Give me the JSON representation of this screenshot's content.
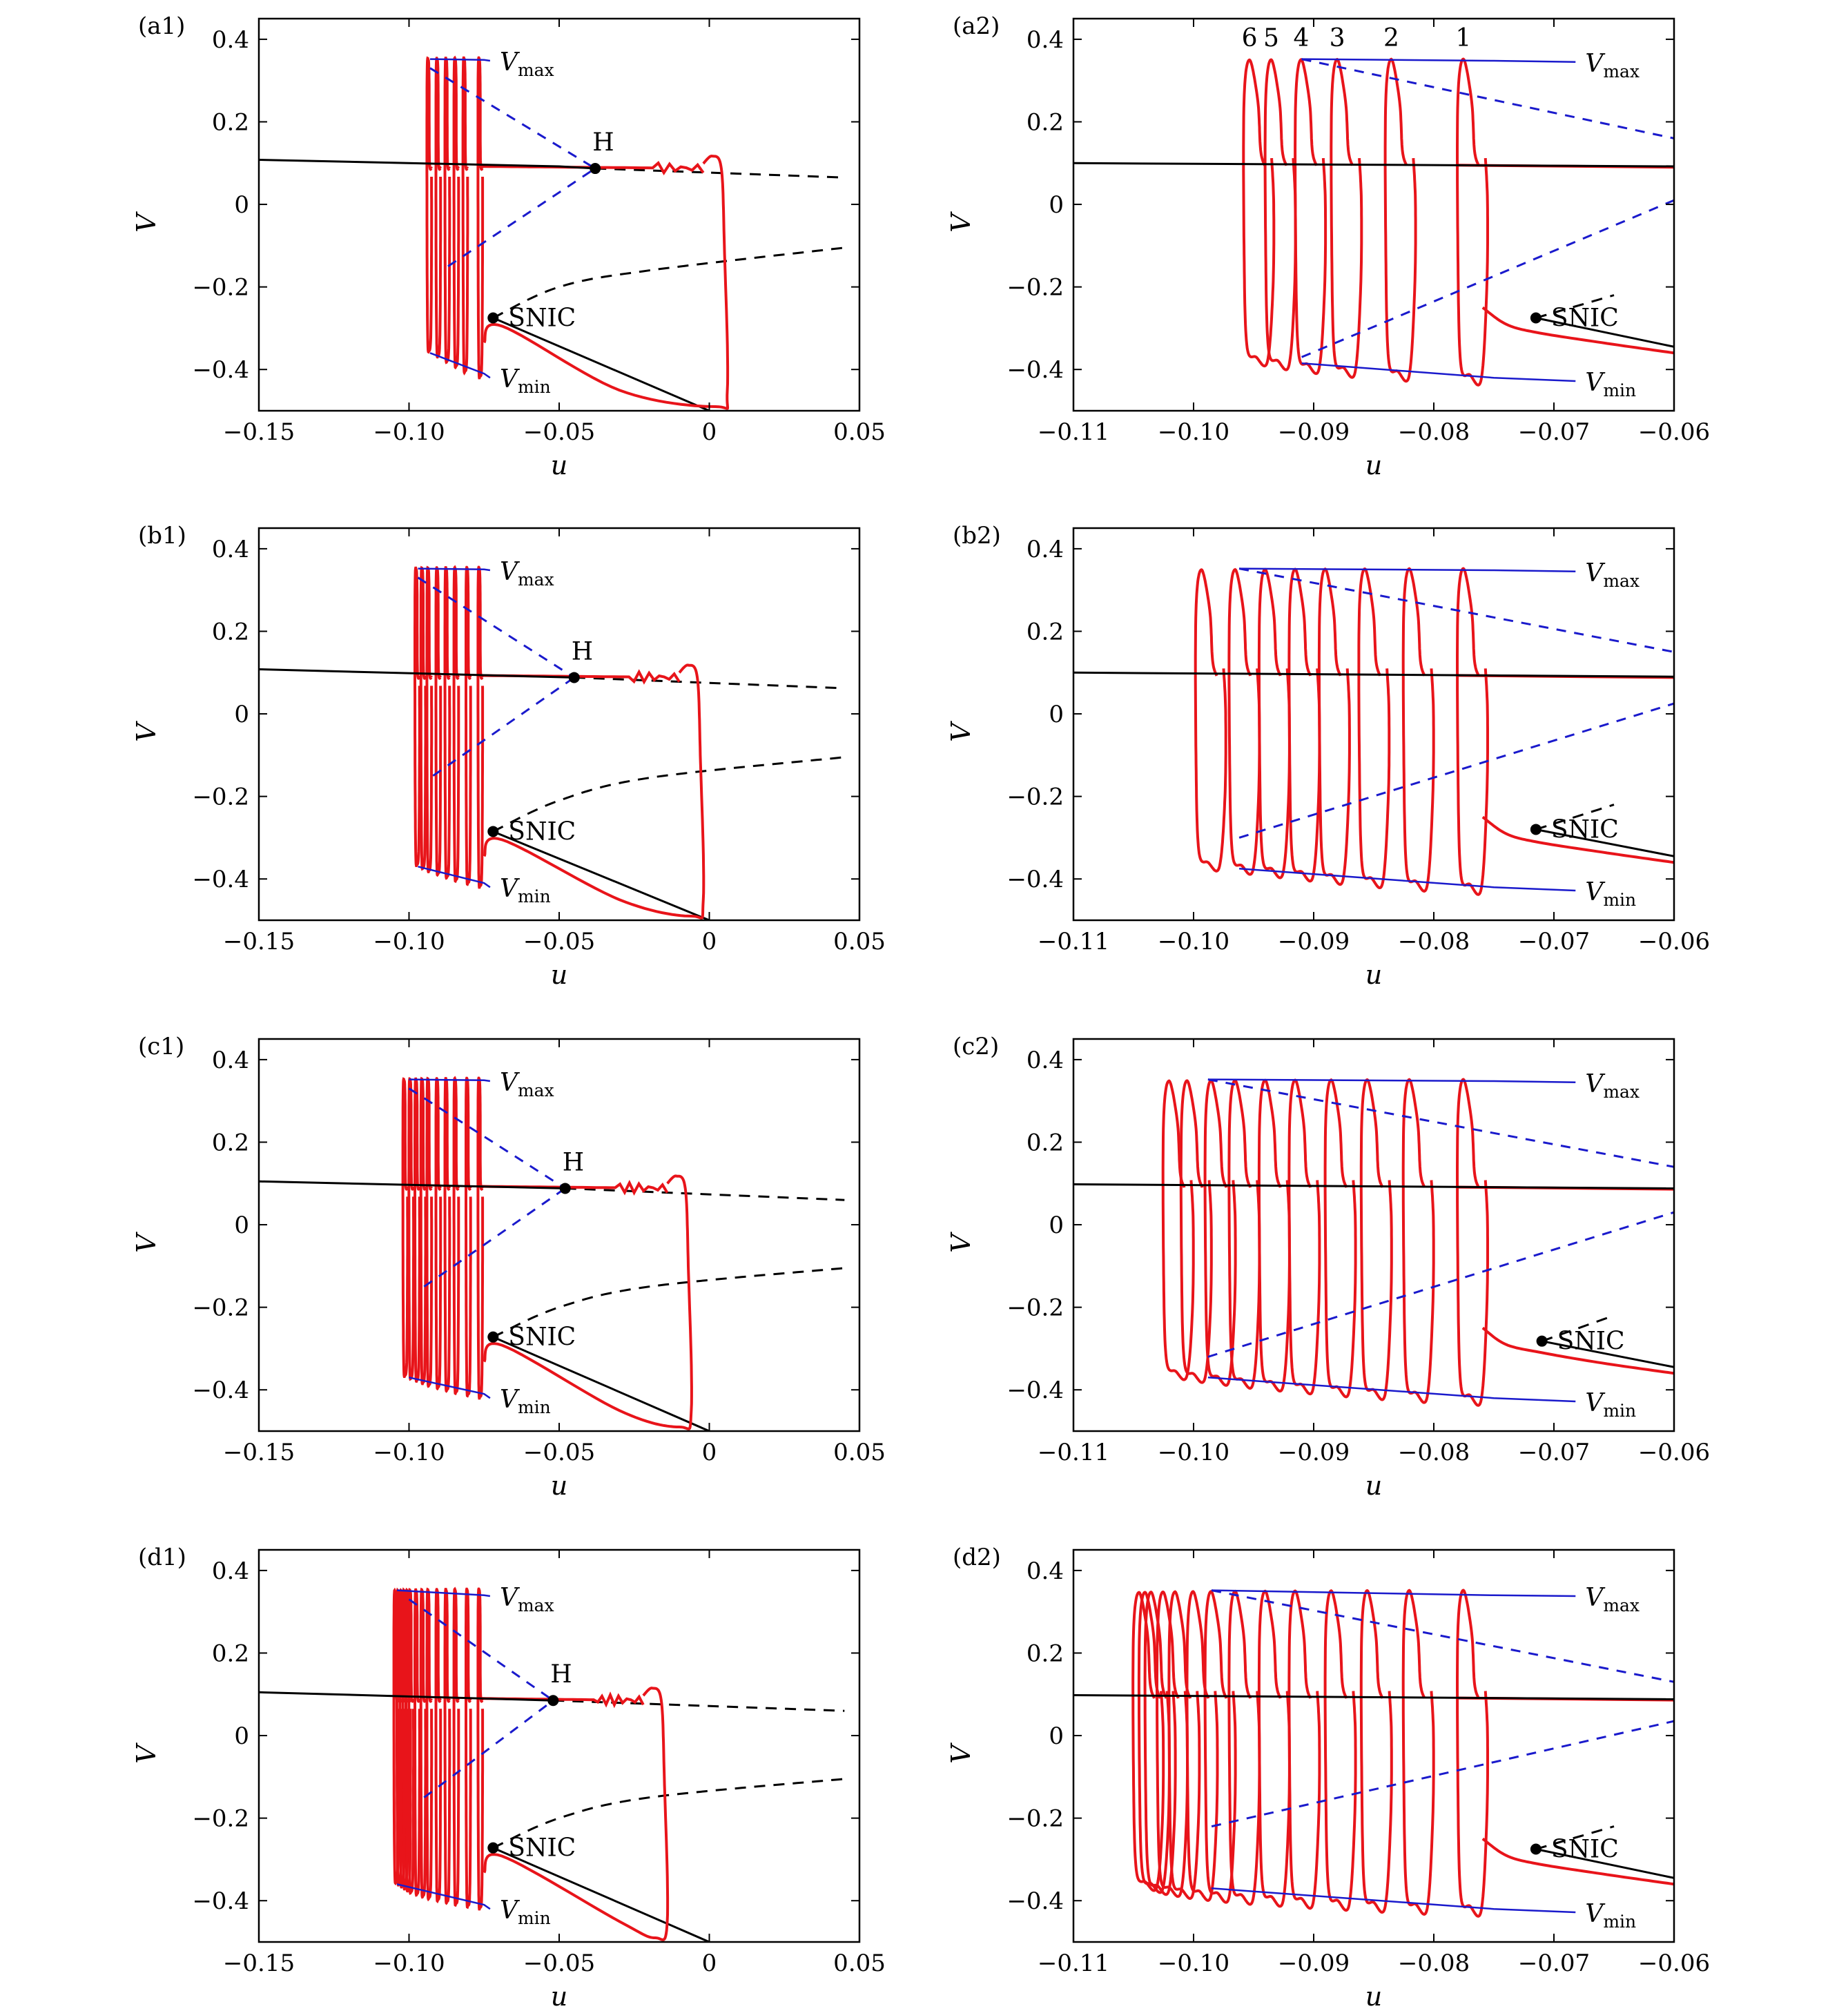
{
  "chart_data": [
    {
      "id": "a1",
      "type": "line",
      "panel_label": "(a1)",
      "xlabel": "u",
      "ylabel": "V",
      "xlim": [
        -0.15,
        0.05
      ],
      "ylim": [
        -0.5,
        0.45
      ],
      "xticks": [
        -0.15,
        -0.1,
        -0.05,
        0,
        0.05
      ],
      "xtick_labels": [
        "−0.15",
        "−0.10",
        "−0.05",
        "0",
        "0.05"
      ],
      "yticks": [
        -0.4,
        -0.2,
        0,
        0.2,
        0.4
      ],
      "ytick_labels": [
        "−0.4",
        "−0.2",
        "0",
        "0.2",
        "0.4"
      ],
      "annotations": {
        "H": "H",
        "SNIC": "SNIC",
        "Vmax_main": "V",
        "Vmax_sub": "max",
        "Vmin_main": "V",
        "Vmin_sub": "min"
      },
      "H_point": [
        -0.038,
        0.087
      ],
      "SNIC_point": [
        -0.072,
        -0.275
      ],
      "stable_upper_branch": [
        [
          -0.15,
          0.108
        ],
        [
          -0.05,
          0.092
        ],
        [
          -0.038,
          0.087
        ]
      ],
      "unstable_upper_branch": [
        [
          -0.038,
          0.087
        ],
        [
          0.045,
          0.065
        ]
      ],
      "unstable_lower_branch": [
        [
          -0.072,
          -0.275
        ],
        [
          -0.05,
          -0.2
        ],
        [
          -0.02,
          -0.16
        ],
        [
          0.045,
          -0.105
        ]
      ],
      "stable_lower_branch": [
        [
          -0.072,
          -0.275
        ],
        [
          0,
          -0.5
        ]
      ],
      "vmax_envelope": [
        [
          -0.093,
          0.352
        ],
        [
          -0.075,
          0.35
        ],
        [
          -0.073,
          0.348
        ]
      ],
      "vmin_envelope": [
        [
          -0.093,
          -0.36
        ],
        [
          -0.075,
          -0.41
        ],
        [
          -0.073,
          -0.42
        ]
      ],
      "hopf_dashed_upper": [
        [
          -0.093,
          0.33
        ],
        [
          -0.038,
          0.087
        ]
      ],
      "hopf_dashed_lower": [
        [
          -0.087,
          -0.15
        ],
        [
          -0.038,
          0.087
        ]
      ],
      "cycle_left_u": [
        -0.077,
        -0.082,
        -0.085,
        -0.088,
        -0.091,
        -0.094
      ],
      "traj_right_u": 0.004,
      "traj_bottom_u": 0.002
    },
    {
      "id": "a2",
      "type": "line",
      "panel_label": "(a2)",
      "xlabel": "u",
      "ylabel": "V",
      "xlim": [
        -0.11,
        -0.06
      ],
      "ylim": [
        -0.5,
        0.45
      ],
      "xticks": [
        -0.11,
        -0.1,
        -0.09,
        -0.08,
        -0.07,
        -0.06
      ],
      "xtick_labels": [
        "−0.11",
        "−0.10",
        "−0.09",
        "−0.08",
        "−0.07",
        "−0.06"
      ],
      "yticks": [
        -0.4,
        -0.2,
        0,
        0.2,
        0.4
      ],
      "ytick_labels": [
        "−0.4",
        "−0.2",
        "0",
        "0.2",
        "0.4"
      ],
      "annotations": {
        "SNIC": "SNIC",
        "Vmax_main": "V",
        "Vmax_sub": "max",
        "Vmin_main": "V",
        "Vmin_sub": "min"
      },
      "cycle_numbers": [
        "1",
        "2",
        "3",
        "4",
        "5",
        "6"
      ],
      "SNIC_point": [
        -0.0715,
        -0.275
      ],
      "stable_upper_branch": [
        [
          -0.11,
          0.1
        ],
        [
          -0.06,
          0.092
        ]
      ],
      "unstable_lower_branch": [
        [
          -0.0715,
          -0.275
        ],
        [
          -0.065,
          -0.22
        ]
      ],
      "stable_lower_branch": [
        [
          -0.0715,
          -0.275
        ],
        [
          -0.06,
          -0.345
        ]
      ],
      "vmax_envelope": [
        [
          -0.091,
          0.352
        ],
        [
          -0.075,
          0.348
        ],
        [
          -0.0682,
          0.345
        ]
      ],
      "vmin_envelope": [
        [
          -0.091,
          -0.385
        ],
        [
          -0.075,
          -0.42
        ],
        [
          -0.0682,
          -0.428
        ]
      ],
      "hopf_dashed_upper": [
        [
          -0.091,
          0.352
        ],
        [
          -0.06,
          0.16
        ]
      ],
      "hopf_dashed_lower": [
        [
          -0.091,
          -0.37
        ],
        [
          -0.06,
          0.01
        ]
      ],
      "cycle_left_u": [
        -0.078,
        -0.084,
        -0.0885,
        -0.0915,
        -0.094,
        -0.0958
      ]
    },
    {
      "id": "b1",
      "type": "line",
      "panel_label": "(b1)",
      "xlabel": "u",
      "ylabel": "V",
      "xlim": [
        -0.15,
        0.05
      ],
      "ylim": [
        -0.5,
        0.45
      ],
      "xticks": [
        -0.15,
        -0.1,
        -0.05,
        0,
        0.05
      ],
      "xtick_labels": [
        "−0.15",
        "−0.10",
        "−0.05",
        "0",
        "0.05"
      ],
      "yticks": [
        -0.4,
        -0.2,
        0,
        0.2,
        0.4
      ],
      "ytick_labels": [
        "−0.4",
        "−0.2",
        "0",
        "0.2",
        "0.4"
      ],
      "annotations": {
        "H": "H",
        "SNIC": "SNIC",
        "Vmax_main": "V",
        "Vmax_sub": "max",
        "Vmin_main": "V",
        "Vmin_sub": "min"
      },
      "H_point": [
        -0.045,
        0.088
      ],
      "SNIC_point": [
        -0.072,
        -0.285
      ],
      "stable_upper_branch": [
        [
          -0.15,
          0.108
        ],
        [
          -0.045,
          0.088
        ]
      ],
      "unstable_upper_branch": [
        [
          -0.045,
          0.088
        ],
        [
          0.045,
          0.062
        ]
      ],
      "unstable_lower_branch": [
        [
          -0.072,
          -0.285
        ],
        [
          -0.05,
          -0.21
        ],
        [
          -0.02,
          -0.155
        ],
        [
          0.045,
          -0.105
        ]
      ],
      "stable_lower_branch": [
        [
          -0.072,
          -0.285
        ],
        [
          0,
          -0.5
        ]
      ],
      "vmax_envelope": [
        [
          -0.097,
          0.352
        ],
        [
          -0.075,
          0.35
        ],
        [
          -0.073,
          0.348
        ]
      ],
      "vmin_envelope": [
        [
          -0.097,
          -0.37
        ],
        [
          -0.075,
          -0.41
        ],
        [
          -0.073,
          -0.42
        ]
      ],
      "hopf_dashed_upper": [
        [
          -0.097,
          0.33
        ],
        [
          -0.045,
          0.088
        ]
      ],
      "hopf_dashed_lower": [
        [
          -0.092,
          -0.15
        ],
        [
          -0.045,
          0.088
        ]
      ],
      "cycle_left_u": [
        -0.077,
        -0.081,
        -0.085,
        -0.088,
        -0.091,
        -0.094,
        -0.096,
        -0.098
      ],
      "traj_right_u": -0.004,
      "traj_bottom_u": -0.006
    },
    {
      "id": "b2",
      "type": "line",
      "panel_label": "(b2)",
      "xlabel": "u",
      "ylabel": "V",
      "xlim": [
        -0.11,
        -0.06
      ],
      "ylim": [
        -0.5,
        0.45
      ],
      "xticks": [
        -0.11,
        -0.1,
        -0.09,
        -0.08,
        -0.07,
        -0.06
      ],
      "xtick_labels": [
        "−0.11",
        "−0.10",
        "−0.09",
        "−0.08",
        "−0.07",
        "−0.06"
      ],
      "yticks": [
        -0.4,
        -0.2,
        0,
        0.2,
        0.4
      ],
      "ytick_labels": [
        "−0.4",
        "−0.2",
        "0",
        "0.2",
        "0.4"
      ],
      "annotations": {
        "SNIC": "SNIC",
        "Vmax_main": "V",
        "Vmax_sub": "max",
        "Vmin_main": "V",
        "Vmin_sub": "min"
      },
      "SNIC_point": [
        -0.0715,
        -0.28
      ],
      "stable_upper_branch": [
        [
          -0.11,
          0.1
        ],
        [
          -0.06,
          0.09
        ]
      ],
      "unstable_lower_branch": [
        [
          -0.0715,
          -0.28
        ],
        [
          -0.065,
          -0.22
        ]
      ],
      "stable_lower_branch": [
        [
          -0.0715,
          -0.28
        ],
        [
          -0.06,
          -0.345
        ]
      ],
      "vmax_envelope": [
        [
          -0.0962,
          0.352
        ],
        [
          -0.075,
          0.348
        ],
        [
          -0.0682,
          0.345
        ]
      ],
      "vmin_envelope": [
        [
          -0.0962,
          -0.375
        ],
        [
          -0.075,
          -0.42
        ],
        [
          -0.0682,
          -0.428
        ]
      ],
      "hopf_dashed_upper": [
        [
          -0.0962,
          0.352
        ],
        [
          -0.06,
          0.15
        ]
      ],
      "hopf_dashed_lower": [
        [
          -0.0962,
          -0.3
        ],
        [
          -0.06,
          0.025
        ]
      ],
      "cycle_left_u": [
        -0.078,
        -0.0825,
        -0.0862,
        -0.0895,
        -0.092,
        -0.0945,
        -0.097,
        -0.0998
      ]
    },
    {
      "id": "c1",
      "type": "line",
      "panel_label": "(c1)",
      "xlabel": "u",
      "ylabel": "V",
      "xlim": [
        -0.15,
        0.05
      ],
      "ylim": [
        -0.5,
        0.45
      ],
      "xticks": [
        -0.15,
        -0.1,
        -0.05,
        0,
        0.05
      ],
      "xtick_labels": [
        "−0.15",
        "−0.10",
        "−0.05",
        "0",
        "0.05"
      ],
      "yticks": [
        -0.4,
        -0.2,
        0,
        0.2,
        0.4
      ],
      "ytick_labels": [
        "−0.4",
        "−0.2",
        "0",
        "0.2",
        "0.4"
      ],
      "annotations": {
        "H": "H",
        "SNIC": "SNIC",
        "Vmax_main": "V",
        "Vmax_sub": "max",
        "Vmin_main": "V",
        "Vmin_sub": "min"
      },
      "H_point": [
        -0.048,
        0.088
      ],
      "SNIC_point": [
        -0.072,
        -0.272
      ],
      "stable_upper_branch": [
        [
          -0.15,
          0.105
        ],
        [
          -0.048,
          0.088
        ]
      ],
      "unstable_upper_branch": [
        [
          -0.048,
          0.088
        ],
        [
          0.045,
          0.06
        ]
      ],
      "unstable_lower_branch": [
        [
          -0.072,
          -0.272
        ],
        [
          -0.05,
          -0.2
        ],
        [
          -0.02,
          -0.15
        ],
        [
          0.045,
          -0.105
        ]
      ],
      "stable_lower_branch": [
        [
          -0.072,
          -0.272
        ],
        [
          0,
          -0.5
        ]
      ],
      "vmax_envelope": [
        [
          -0.1,
          0.352
        ],
        [
          -0.075,
          0.35
        ],
        [
          -0.073,
          0.348
        ]
      ],
      "vmin_envelope": [
        [
          -0.1,
          -0.37
        ],
        [
          -0.075,
          -0.41
        ],
        [
          -0.073,
          -0.42
        ]
      ],
      "hopf_dashed_upper": [
        [
          -0.1,
          0.33
        ],
        [
          -0.048,
          0.088
        ]
      ],
      "hopf_dashed_lower": [
        [
          -0.095,
          -0.15
        ],
        [
          -0.048,
          0.088
        ]
      ],
      "cycle_left_u": [
        -0.077,
        -0.081,
        -0.085,
        -0.088,
        -0.091,
        -0.094,
        -0.096,
        -0.098,
        -0.1,
        -0.102
      ],
      "traj_right_u": -0.008,
      "traj_bottom_u": -0.01
    },
    {
      "id": "c2",
      "type": "line",
      "panel_label": "(c2)",
      "xlabel": "u",
      "ylabel": "V",
      "xlim": [
        -0.11,
        -0.06
      ],
      "ylim": [
        -0.5,
        0.45
      ],
      "xticks": [
        -0.11,
        -0.1,
        -0.09,
        -0.08,
        -0.07,
        -0.06
      ],
      "xtick_labels": [
        "−0.11",
        "−0.10",
        "−0.09",
        "−0.08",
        "−0.07",
        "−0.06"
      ],
      "yticks": [
        -0.4,
        -0.2,
        0,
        0.2,
        0.4
      ],
      "ytick_labels": [
        "−0.4",
        "−0.2",
        "0",
        "0.2",
        "0.4"
      ],
      "annotations": {
        "SNIC": "SNIC",
        "Vmax_main": "V",
        "Vmax_sub": "max",
        "Vmin_main": "V",
        "Vmin_sub": "min"
      },
      "SNIC_point": [
        -0.071,
        -0.282
      ],
      "stable_upper_branch": [
        [
          -0.11,
          0.098
        ],
        [
          -0.06,
          0.088
        ]
      ],
      "unstable_lower_branch": [
        [
          -0.071,
          -0.282
        ],
        [
          -0.065,
          -0.22
        ]
      ],
      "stable_lower_branch": [
        [
          -0.071,
          -0.282
        ],
        [
          -0.06,
          -0.345
        ]
      ],
      "vmax_envelope": [
        [
          -0.0988,
          0.352
        ],
        [
          -0.075,
          0.348
        ],
        [
          -0.0682,
          0.345
        ]
      ],
      "vmin_envelope": [
        [
          -0.0988,
          -0.37
        ],
        [
          -0.075,
          -0.42
        ],
        [
          -0.0682,
          -0.428
        ]
      ],
      "hopf_dashed_upper": [
        [
          -0.0988,
          0.352
        ],
        [
          -0.06,
          0.14
        ]
      ],
      "hopf_dashed_lower": [
        [
          -0.0988,
          -0.32
        ],
        [
          -0.06,
          0.03
        ]
      ],
      "cycle_left_u": [
        -0.078,
        -0.0825,
        -0.086,
        -0.089,
        -0.092,
        -0.0945,
        -0.097,
        -0.099,
        -0.101,
        -0.1025
      ]
    },
    {
      "id": "d1",
      "type": "line",
      "panel_label": "(d1)",
      "xlabel": "u",
      "ylabel": "V",
      "xlim": [
        -0.15,
        0.05
      ],
      "ylim": [
        -0.5,
        0.45
      ],
      "xticks": [
        -0.15,
        -0.1,
        -0.05,
        0,
        0.05
      ],
      "xtick_labels": [
        "−0.15",
        "−0.10",
        "−0.05",
        "0",
        "0.05"
      ],
      "yticks": [
        -0.4,
        -0.2,
        0,
        0.2,
        0.4
      ],
      "ytick_labels": [
        "−0.4",
        "−0.2",
        "0",
        "0.2",
        "0.4"
      ],
      "annotations": {
        "H": "H",
        "SNIC": "SNIC",
        "Vmax_main": "V",
        "Vmax_sub": "max",
        "Vmin_main": "V",
        "Vmin_sub": "min"
      },
      "H_point": [
        -0.052,
        0.085
      ],
      "SNIC_point": [
        -0.072,
        -0.272
      ],
      "stable_upper_branch": [
        [
          -0.15,
          0.105
        ],
        [
          -0.052,
          0.085
        ]
      ],
      "unstable_upper_branch": [
        [
          -0.052,
          0.085
        ],
        [
          0.045,
          0.06
        ]
      ],
      "unstable_lower_branch": [
        [
          -0.072,
          -0.272
        ],
        [
          -0.05,
          -0.2
        ],
        [
          -0.02,
          -0.15
        ],
        [
          0.045,
          -0.105
        ]
      ],
      "stable_lower_branch": [
        [
          -0.072,
          -0.272
        ],
        [
          0,
          -0.5
        ]
      ],
      "vmax_envelope": [
        [
          -0.104,
          0.352
        ],
        [
          -0.075,
          0.34
        ],
        [
          -0.073,
          0.338
        ]
      ],
      "vmin_envelope": [
        [
          -0.104,
          -0.36
        ],
        [
          -0.075,
          -0.41
        ],
        [
          -0.073,
          -0.42
        ]
      ],
      "hopf_dashed_upper": [
        [
          -0.1,
          0.33
        ],
        [
          -0.052,
          0.085
        ]
      ],
      "hopf_dashed_lower": [
        [
          -0.095,
          -0.15
        ],
        [
          -0.052,
          0.085
        ]
      ],
      "cycle_left_u": [
        -0.077,
        -0.081,
        -0.085,
        -0.088,
        -0.091,
        -0.094,
        -0.096,
        -0.098,
        -0.1,
        -0.101,
        -0.102,
        -0.103,
        -0.104,
        -0.105
      ],
      "traj_right_u": -0.016,
      "traj_bottom_u": -0.018
    },
    {
      "id": "d2",
      "type": "line",
      "panel_label": "(d2)",
      "xlabel": "u",
      "ylabel": "V",
      "xlim": [
        -0.11,
        -0.06
      ],
      "ylim": [
        -0.5,
        0.45
      ],
      "xticks": [
        -0.11,
        -0.1,
        -0.09,
        -0.08,
        -0.07,
        -0.06
      ],
      "xtick_labels": [
        "−0.11",
        "−0.10",
        "−0.09",
        "−0.08",
        "−0.07",
        "−0.06"
      ],
      "yticks": [
        -0.4,
        -0.2,
        0,
        0.2,
        0.4
      ],
      "ytick_labels": [
        "−0.4",
        "−0.2",
        "0",
        "0.2",
        "0.4"
      ],
      "annotations": {
        "SNIC": "SNIC",
        "Vmax_main": "V",
        "Vmax_sub": "max",
        "Vmin_main": "V",
        "Vmin_sub": "min"
      },
      "SNIC_point": [
        -0.0715,
        -0.275
      ],
      "stable_upper_branch": [
        [
          -0.11,
          0.098
        ],
        [
          -0.06,
          0.088
        ]
      ],
      "unstable_lower_branch": [
        [
          -0.0715,
          -0.275
        ],
        [
          -0.065,
          -0.22
        ]
      ],
      "stable_lower_branch": [
        [
          -0.0715,
          -0.275
        ],
        [
          -0.06,
          -0.345
        ]
      ],
      "vmax_envelope": [
        [
          -0.0985,
          0.352
        ],
        [
          -0.075,
          0.34
        ],
        [
          -0.0682,
          0.338
        ]
      ],
      "vmin_envelope": [
        [
          -0.0985,
          -0.37
        ],
        [
          -0.075,
          -0.42
        ],
        [
          -0.0682,
          -0.428
        ]
      ],
      "hopf_dashed_upper": [
        [
          -0.0985,
          0.352
        ],
        [
          -0.06,
          0.13
        ]
      ],
      "hopf_dashed_lower": [
        [
          -0.0985,
          -0.22
        ],
        [
          -0.06,
          0.035
        ]
      ],
      "cycle_left_u": [
        -0.078,
        -0.0825,
        -0.086,
        -0.089,
        -0.092,
        -0.0945,
        -0.097,
        -0.099,
        -0.1005,
        -0.102,
        -0.103,
        -0.104,
        -0.1045,
        -0.105
      ]
    }
  ],
  "colors": {
    "trajectory": "#e8141a",
    "stable": "#000000",
    "unstable": "#000000",
    "envelope": "#1a1acc",
    "point": "#000000"
  }
}
